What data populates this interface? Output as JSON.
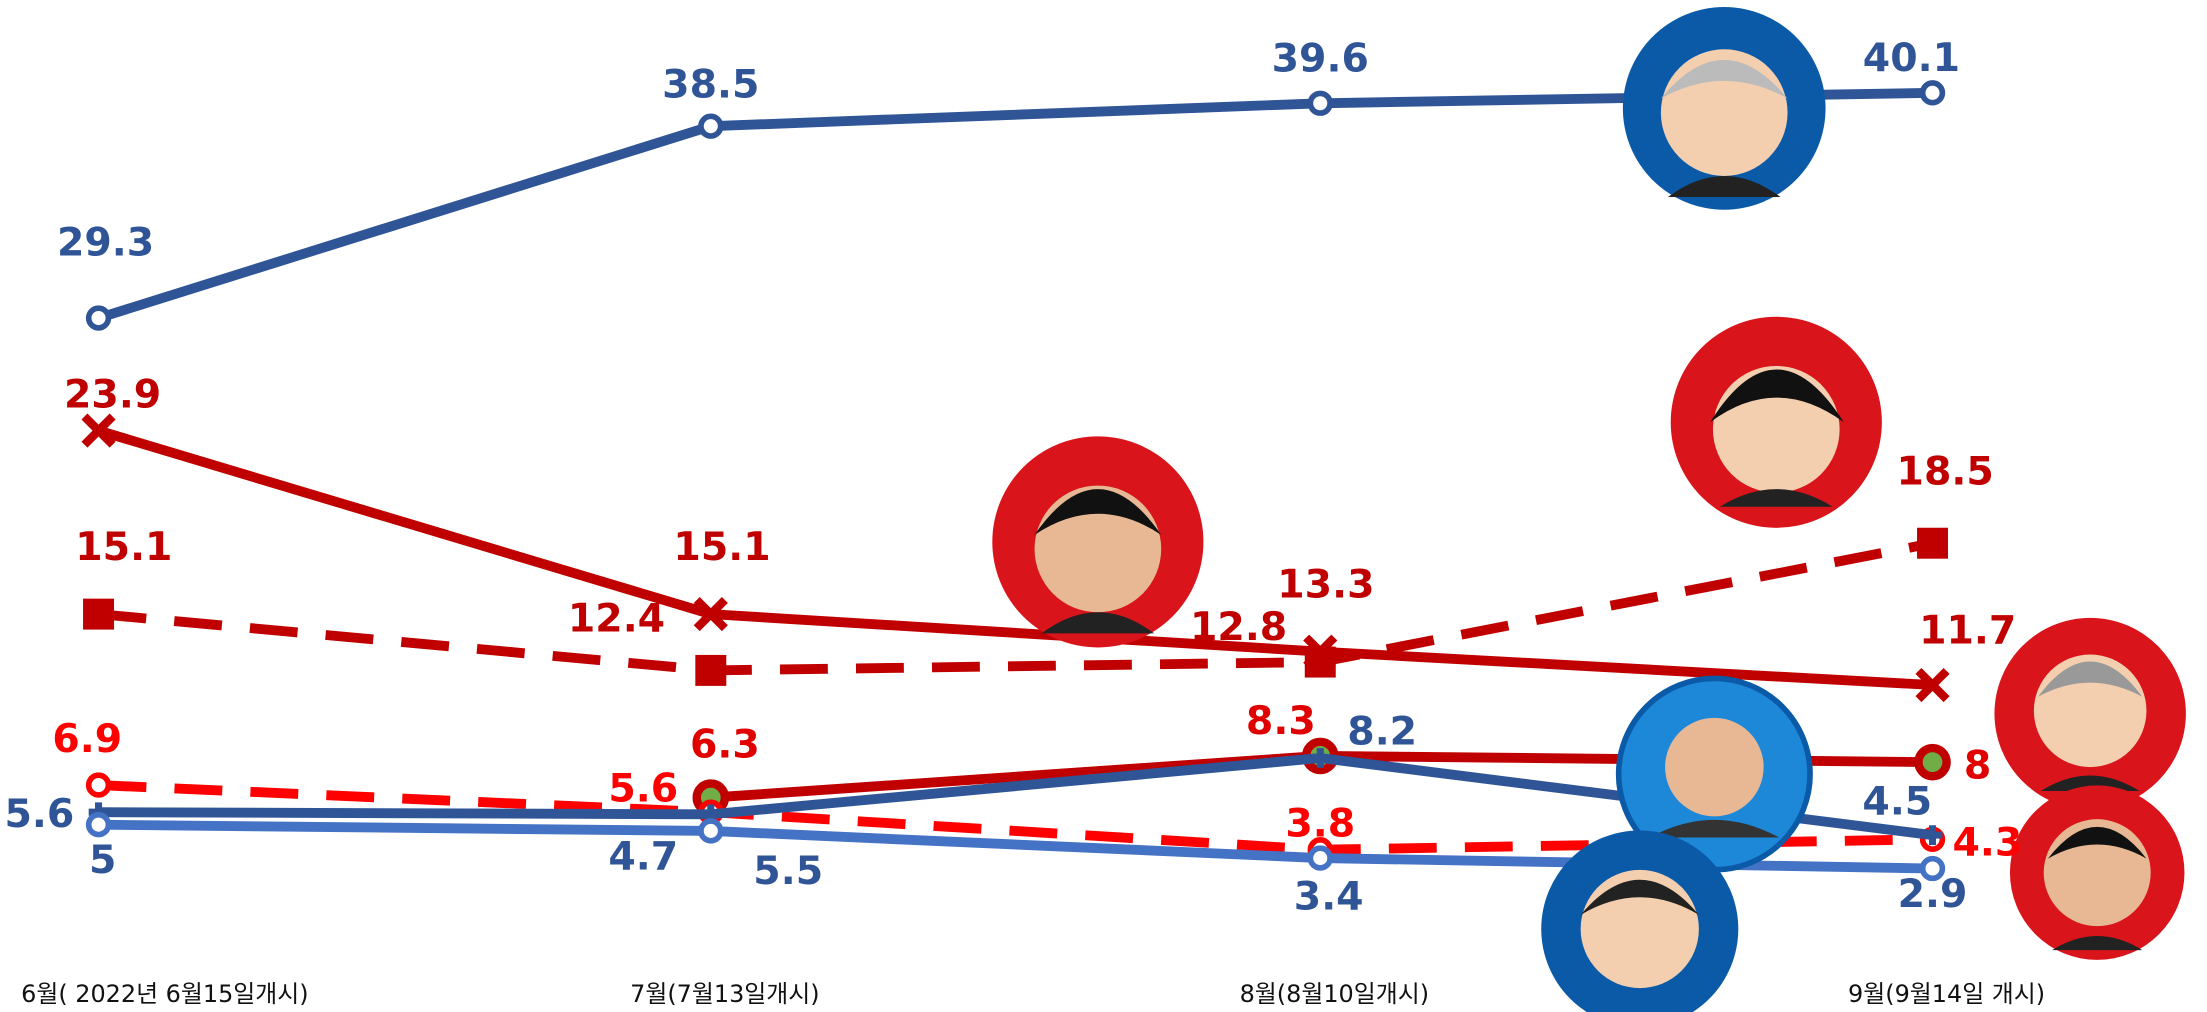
{
  "chart_data": {
    "type": "line",
    "categories": [
      "6월( 2022년 6월15일개시)",
      "7월(7월13일개시)",
      "8월(8월10일개시)",
      "9월(9월14일 개시)"
    ],
    "ylim": [
      0,
      43
    ],
    "series": [
      {
        "name": null,
        "color": "#2f5597",
        "marker": "ring",
        "dash": false,
        "values": [
          29.3,
          38.5,
          39.6,
          40.1
        ]
      },
      {
        "name": null,
        "color": "#c00000",
        "marker": "x",
        "dash": false,
        "values": [
          23.9,
          15.1,
          13.3,
          11.7
        ]
      },
      {
        "name": null,
        "color": "#c00000",
        "marker": "square",
        "dash": true,
        "values": [
          15.1,
          12.4,
          12.8,
          18.5
        ]
      },
      {
        "name": null,
        "color": "#c00000",
        "marker": "dot",
        "dash": false,
        "values": [
          null,
          6.3,
          8.3,
          8
        ]
      },
      {
        "name": null,
        "color": "#ff0000",
        "marker": "ring",
        "dash": true,
        "values": [
          6.9,
          5.6,
          3.8,
          4.3
        ]
      },
      {
        "name": null,
        "color": "#2f5597",
        "marker": "plus",
        "dash": false,
        "values": [
          5.6,
          5.5,
          8.2,
          4.5
        ]
      },
      {
        "name": null,
        "color": "#4472c4",
        "marker": "ring",
        "dash": false,
        "values": [
          5,
          4.7,
          3.4,
          2.9
        ]
      }
    ]
  }
}
